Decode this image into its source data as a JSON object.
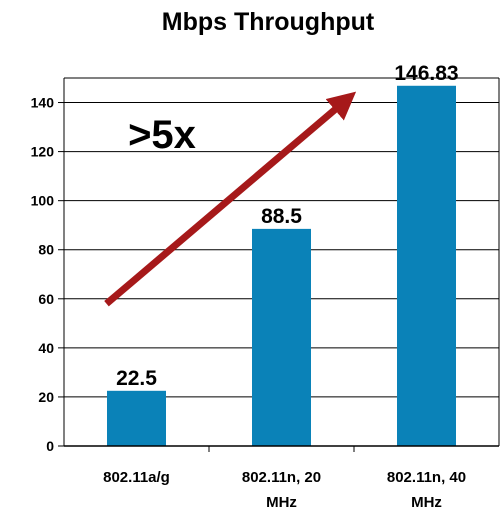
{
  "chart_data": {
    "type": "bar",
    "title": "Mbps Throughput",
    "categories": [
      "802.11a/g",
      "802.11n, 20 MHz",
      "802.11n, 40 MHz"
    ],
    "category_lines": [
      [
        "802.11a/g"
      ],
      [
        "802.11n, 20",
        "MHz"
      ],
      [
        "802.11n, 40",
        "MHz"
      ]
    ],
    "values": [
      22.5,
      88.5,
      146.83
    ],
    "value_labels": [
      "22.5",
      "88.5",
      "146.83"
    ],
    "ylim": [
      0,
      150
    ],
    "yticks": [
      0,
      20,
      40,
      60,
      80,
      100,
      120,
      140
    ],
    "grid": true,
    "bar_color": "#0a82b8",
    "annotation": {
      "text": ">5x",
      "arrow_color": "#a6191a",
      "arrow_from": {
        "category_index": 0,
        "value": 58
      },
      "arrow_to": {
        "category_index": 2,
        "value": 146
      }
    }
  }
}
